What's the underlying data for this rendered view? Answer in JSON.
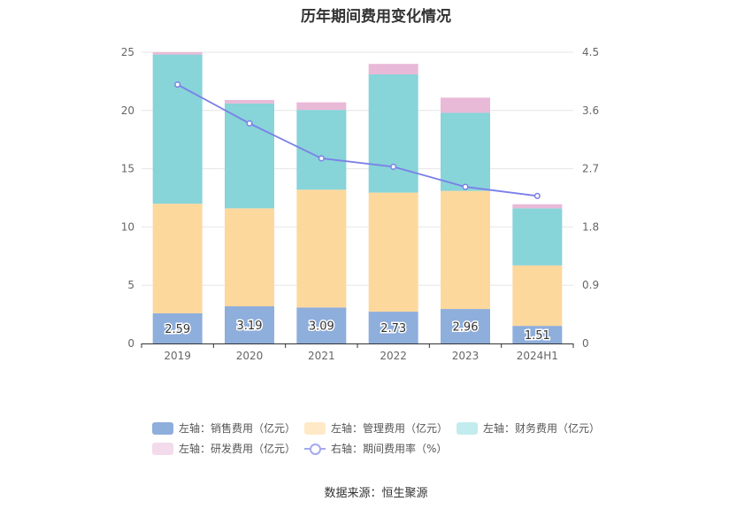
{
  "chart_data": {
    "type": "bar",
    "title": "历年期间费用变化情况",
    "categories": [
      "2019",
      "2020",
      "2021",
      "2022",
      "2023",
      "2024H1"
    ],
    "left_axis": {
      "min": 0,
      "max": 25,
      "ticks": [
        "0",
        "5",
        "10",
        "15",
        "20",
        "25"
      ]
    },
    "right_axis": {
      "min": 0,
      "max": 4.5,
      "ticks": [
        "0",
        "0.9",
        "1.8",
        "2.7",
        "3.6",
        "4.5"
      ]
    },
    "series": [
      {
        "name": "左轴：销售费用（亿元）",
        "axis": "left",
        "color": "#8eaedc",
        "values": [
          2.59,
          3.19,
          3.09,
          2.73,
          2.96,
          1.51
        ],
        "labels": [
          "2.59",
          "3.19",
          "3.09",
          "2.73",
          "2.96",
          "1.51"
        ]
      },
      {
        "name": "左轴：管理费用（亿元）",
        "axis": "left",
        "color": "#fdd89d",
        "values": [
          9.41,
          8.41,
          10.11,
          10.22,
          10.14,
          5.19
        ]
      },
      {
        "name": "左轴：财务费用（亿元）",
        "axis": "left",
        "color": "#87d4d9",
        "values": [
          12.8,
          9.0,
          6.85,
          10.15,
          6.7,
          4.9
        ]
      },
      {
        "name": "左轴：研发费用（亿元）",
        "axis": "left",
        "color": "#e9b9d8",
        "values": [
          0.2,
          0.3,
          0.65,
          0.9,
          1.3,
          0.35
        ]
      },
      {
        "name": "右轴：期间费用率（%）",
        "axis": "right",
        "type": "line",
        "color": "#7b7fe8",
        "values": [
          4.0,
          3.4,
          2.86,
          2.73,
          2.42,
          2.28
        ]
      }
    ],
    "legend_swatch_colors": [
      "#8eaedc",
      "#ffe9c6",
      "#c3ecee",
      "#f3dbeb"
    ],
    "grid": true,
    "legend_position": "bottom"
  },
  "source": "数据来源：恒生聚源"
}
